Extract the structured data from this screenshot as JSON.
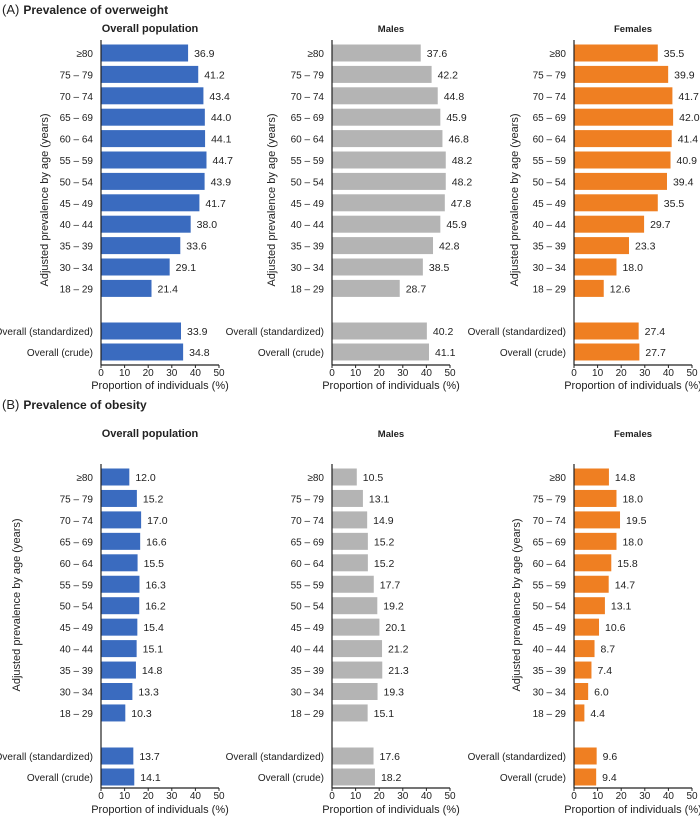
{
  "sections": [
    {
      "letter": "(A)",
      "title": "Prevalence of overweight"
    },
    {
      "letter": "(B)",
      "title": "Prevalence of obesity"
    }
  ],
  "colors": {
    "overall": "#3a6bbf",
    "males": "#b4b4b4",
    "females": "#ef7f22"
  },
  "chart_data": [
    {
      "type": "bar",
      "orientation": "horizontal",
      "section": 0,
      "title": "Overall population",
      "series_color": "#3a6bbf",
      "categories": [
        "≥80",
        "75 – 79",
        "70 – 74",
        "65 – 69",
        "60 – 64",
        "55 – 59",
        "50 – 54",
        "45 – 49",
        "40 – 44",
        "35 – 39",
        "30 – 34",
        "18 – 29",
        "Overall (standardized)",
        "Overall (crude)"
      ],
      "values": [
        36.9,
        41.2,
        43.4,
        44.0,
        44.1,
        44.7,
        43.9,
        41.7,
        38.0,
        33.6,
        29.1,
        21.4,
        33.9,
        34.8
      ],
      "labels": [
        "36.9",
        "41.2",
        "43.4",
        "44.0",
        "44.1",
        "44.7",
        "43.9",
        "41.7",
        "38.0",
        "33.6",
        "29.1",
        "21.4",
        "33.9",
        "34.8"
      ],
      "xlabel": "Proportion of individuals (%)",
      "ylabel": "Adjusted prevalence by age (years)",
      "xlim": [
        0,
        50
      ],
      "xticks": [
        "0",
        "10",
        "20",
        "30",
        "40",
        "50"
      ]
    },
    {
      "type": "bar",
      "orientation": "horizontal",
      "section": 0,
      "title": "Males",
      "series_color": "#b4b4b4",
      "categories": [
        "≥80",
        "75 – 79",
        "70 – 74",
        "65 – 69",
        "60 – 64",
        "55 – 59",
        "50 – 54",
        "45 – 49",
        "40 – 44",
        "35 – 39",
        "30 – 34",
        "18 – 29",
        "Overall (standardized)",
        "Overall (crude)"
      ],
      "values": [
        37.6,
        42.2,
        44.8,
        45.9,
        46.8,
        48.2,
        48.2,
        47.8,
        45.9,
        42.8,
        38.5,
        28.7,
        40.2,
        41.1
      ],
      "labels": [
        "37.6",
        "42.2",
        "44.8",
        "45.9",
        "46.8",
        "48.2",
        "48.2",
        "47.8",
        "45.9",
        "42.8",
        "38.5",
        "28.7",
        "40.2",
        "41.1"
      ],
      "xlabel": "Proportion of individuals (%)",
      "ylabel": "Adjusted prevalence by age (years)",
      "xlim": [
        0,
        50
      ],
      "xticks": [
        "0",
        "10",
        "20",
        "30",
        "40",
        "50"
      ]
    },
    {
      "type": "bar",
      "orientation": "horizontal",
      "section": 0,
      "title": "Females",
      "series_color": "#ef7f22",
      "categories": [
        "≥80",
        "75 – 79",
        "70 – 74",
        "65 – 69",
        "60 – 64",
        "55 – 59",
        "50 – 54",
        "45 – 49",
        "40 – 44",
        "35 – 39",
        "30 – 34",
        "18 – 29",
        "Overall (standardized)",
        "Overall (crude)"
      ],
      "values": [
        35.5,
        39.9,
        41.7,
        42.0,
        41.4,
        40.9,
        39.4,
        35.5,
        29.7,
        23.3,
        18.0,
        12.6,
        27.4,
        27.7
      ],
      "labels": [
        "35.5",
        "39.9",
        "41.7",
        "42.0",
        "41.4",
        "40.9",
        "39.4",
        "35.5",
        "29.7",
        "23.3",
        "18.0",
        "12.6",
        "27.4",
        "27.7"
      ],
      "xlabel": "Proportion of individuals (%)",
      "ylabel": "Adjusted prevalence by age (years)",
      "xlim": [
        0,
        50
      ],
      "xticks": [
        "0",
        "10",
        "20",
        "30",
        "40",
        "50"
      ]
    },
    {
      "type": "bar",
      "orientation": "horizontal",
      "section": 1,
      "title": "Overall population",
      "series_color": "#3a6bbf",
      "categories": [
        "≥80",
        "75 – 79",
        "70 – 74",
        "65 – 69",
        "60 – 64",
        "55 – 59",
        "50 – 54",
        "45 – 49",
        "40 – 44",
        "35 – 39",
        "30 – 34",
        "18 – 29",
        "Overall (standardized)",
        "Overall (crude)"
      ],
      "values": [
        12.0,
        15.2,
        17.0,
        16.6,
        15.5,
        16.3,
        16.2,
        15.4,
        15.1,
        14.8,
        13.3,
        10.3,
        13.7,
        14.1
      ],
      "labels": [
        "12.0",
        "15.2",
        "17.0",
        "16.6",
        "15.5",
        "16.3",
        "16.2",
        "15.4",
        "15.1",
        "14.8",
        "13.3",
        "10.3",
        "13.7",
        "14.1"
      ],
      "xlabel": "Proportion of individuals (%)",
      "ylabel": "Adjusted prevalence by age (years)",
      "xlim": [
        0,
        50
      ],
      "xticks": [
        "0",
        "10",
        "20",
        "30",
        "40",
        "50"
      ]
    },
    {
      "type": "bar",
      "orientation": "horizontal",
      "section": 1,
      "title": "Males",
      "series_color": "#b4b4b4",
      "categories": [
        "≥80",
        "75 – 79",
        "70 – 74",
        "65 – 69",
        "60 – 64",
        "55 – 59",
        "50 – 54",
        "45 – 49",
        "40 – 44",
        "35 – 39",
        "30 – 34",
        "18 – 29",
        "Overall (standardized)",
        "Overall (crude)"
      ],
      "values": [
        10.5,
        13.1,
        14.9,
        15.2,
        15.2,
        17.7,
        19.2,
        20.1,
        21.2,
        21.3,
        19.3,
        15.1,
        17.6,
        18.2
      ],
      "labels": [
        "10.5",
        "13.1",
        "14.9",
        "15.2",
        "15.2",
        "17.7",
        "19.2",
        "20.1",
        "21.2",
        "21.3",
        "19.3",
        "15.1",
        "17.6",
        "18.2"
      ],
      "xlabel": "Proportion of individuals (%)",
      "ylabel": "",
      "xlim": [
        0,
        50
      ],
      "xticks": [
        "0",
        "10",
        "20",
        "30",
        "40",
        "50"
      ]
    },
    {
      "type": "bar",
      "orientation": "horizontal",
      "section": 1,
      "title": "Females",
      "series_color": "#ef7f22",
      "categories": [
        "≥80",
        "75 – 79",
        "70 – 74",
        "65 – 69",
        "60 – 64",
        "55 – 59",
        "50 – 54",
        "45 – 49",
        "40 – 44",
        "35 – 39",
        "30 – 34",
        "18 – 29",
        "Overall (standardized)",
        "Overall (crude)"
      ],
      "values": [
        14.8,
        18.0,
        19.5,
        18.0,
        15.8,
        14.7,
        13.1,
        10.6,
        8.7,
        7.4,
        6.0,
        4.4,
        9.6,
        9.4
      ],
      "labels": [
        "14.8",
        "18.0",
        "19.5",
        "18.0",
        "15.8",
        "14.7",
        "13.1",
        "10.6",
        "8.7",
        "7.4",
        "6.0",
        "4.4",
        "9.6",
        "9.4"
      ],
      "xlabel": "Proportion of individuals (%)",
      "ylabel": "Adjusted prevalence by age (years)",
      "xlim": [
        0,
        50
      ],
      "xticks": [
        "0",
        "10",
        "20",
        "30",
        "40",
        "50"
      ]
    }
  ]
}
